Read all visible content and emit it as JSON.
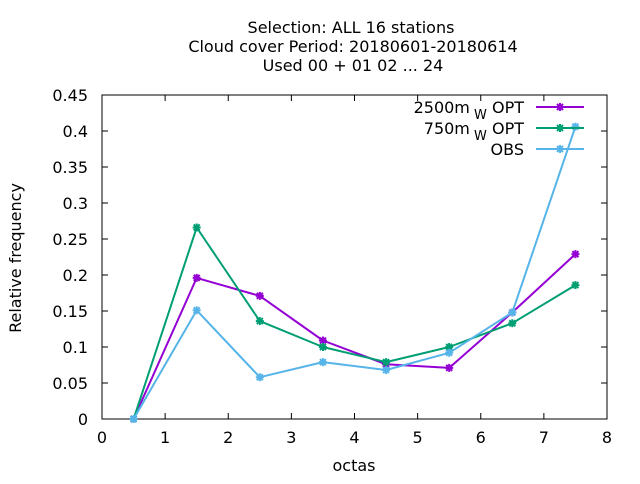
{
  "chart_data": {
    "type": "line",
    "title_lines": [
      "Selection: ALL      16 stations",
      "Cloud cover  Period: 20180601-20180614",
      "Used  00 + 01 02 ... 24"
    ],
    "xlabel": "octas",
    "ylabel": "Relative frequency",
    "xlim": [
      0,
      8
    ],
    "ylim": [
      0,
      0.45
    ],
    "xticks": [
      "0",
      "1",
      "2",
      "3",
      "4",
      "5",
      "6",
      "7",
      "8"
    ],
    "yticks": [
      "0",
      "0.05",
      "0.1",
      "0.15",
      "0.2",
      "0.25",
      "0.3",
      "0.35",
      "0.4",
      "0.45"
    ],
    "x": [
      0.5,
      1.5,
      2.5,
      3.5,
      4.5,
      5.5,
      6.5,
      7.5
    ],
    "legend_position": "top-right",
    "grid": false,
    "series": [
      {
        "name": "2500m",
        "name_sub": "W",
        "name_suffix": "OPT",
        "color": "#9400d3",
        "values": [
          0.0,
          0.196,
          0.171,
          0.109,
          0.076,
          0.071,
          0.148,
          0.229
        ]
      },
      {
        "name": "750m",
        "name_sub": "W",
        "name_suffix": "OPT",
        "color": "#009e73",
        "values": [
          0.0,
          0.266,
          0.136,
          0.1,
          0.079,
          0.1,
          0.133,
          0.186
        ]
      },
      {
        "name": "OBS",
        "name_sub": "",
        "name_suffix": "",
        "color": "#56b4e9",
        "values": [
          0.0,
          0.151,
          0.058,
          0.079,
          0.068,
          0.092,
          0.148,
          0.406
        ]
      }
    ]
  }
}
